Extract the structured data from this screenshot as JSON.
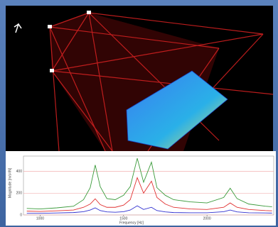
{
  "chart_data": {
    "type": "line",
    "x_label": "Frequency [Hz]",
    "y_label": "Magnitude [m/s²/N]",
    "x": [
      920,
      1000,
      1100,
      1200,
      1260,
      1300,
      1330,
      1360,
      1400,
      1450,
      1500,
      1540,
      1582,
      1620,
      1667,
      1700,
      1750,
      1800,
      1900,
      2000,
      2100,
      2139,
      2180,
      2250,
      2350,
      2390
    ],
    "series": [
      {
        "name": "Green",
        "color": "#3a9a3a",
        "values": [
          60,
          55,
          65,
          80,
          140,
          250,
          458,
          260,
          150,
          140,
          180,
          260,
          520,
          300,
          484,
          250,
          180,
          140,
          120,
          110,
          160,
          245,
          150,
          100,
          80,
          75
        ]
      },
      {
        "name": "Red",
        "color": "#e03030",
        "values": [
          35,
          32,
          38,
          45,
          70,
          100,
          148,
          95,
          70,
          70,
          90,
          140,
          342,
          200,
          310,
          160,
          100,
          70,
          55,
          50,
          70,
          110,
          70,
          50,
          40,
          38
        ]
      },
      {
        "name": "Blue",
        "color": "#3030d0",
        "values": [
          15,
          15,
          18,
          22,
          30,
          45,
          65,
          40,
          28,
          25,
          30,
          45,
          84,
          50,
          70,
          40,
          28,
          22,
          20,
          20,
          30,
          45,
          28,
          20,
          18,
          17
        ]
      }
    ],
    "xlim": [
      900,
      2400
    ],
    "xticks": [
      1000,
      1500,
      2000
    ],
    "ylim": [
      0,
      540
    ],
    "yticks": [
      0,
      200,
      400
    ],
    "grid": true
  }
}
